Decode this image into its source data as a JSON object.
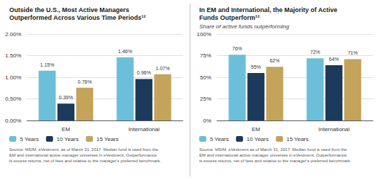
{
  "chart_data": [
    {
      "type": "bar",
      "title": "Outside the U.S., Most Active Managers\nOutperformed Across Various Time Periods¹²",
      "categories": [
        "EM",
        "International"
      ],
      "series": [
        {
          "name": "5 Years",
          "color": "#6bbfd8",
          "values": [
            1.15,
            1.46
          ],
          "value_labels": [
            "1.15%",
            "1.46%"
          ]
        },
        {
          "name": "10 Years",
          "color": "#1b3a5c",
          "values": [
            0.39,
            0.96
          ],
          "value_labels": [
            "0.39%",
            "0.96%"
          ]
        },
        {
          "name": "15 Years",
          "color": "#c4a35a",
          "values": [
            0.76,
            1.07
          ],
          "value_labels": [
            "0.76%",
            "1.07%"
          ]
        }
      ],
      "ylim": [
        0,
        2.0
      ],
      "yticks": [
        {
          "value": 0.0,
          "label": "0.00%"
        },
        {
          "value": 0.5,
          "label": "0.50%"
        },
        {
          "value": 1.0,
          "label": "1.00%"
        },
        {
          "value": 1.5,
          "label": "1.50%"
        },
        {
          "value": 2.0,
          "label": "2.00%"
        }
      ],
      "grid": true,
      "data_labels": true,
      "legend": "lower left",
      "annotations": [
        "Source: MSIM, eVestment, as of March 31, 2017. Median fund is used from the\nEM and international active manager universes in eVestment. Outperformance\nis excess returns, net of fees and relative to the manager's preferred benchmark."
      ]
    },
    {
      "type": "bar",
      "title": "In EM and International, the Majority of Active\nFunds Outperform¹³",
      "subtitle": "Share of active funds outperforming",
      "categories": [
        "EM",
        "International"
      ],
      "series": [
        {
          "name": "5 Years",
          "color": "#6bbfd8",
          "values": [
            76,
            72
          ],
          "value_labels": [
            "76%",
            "72%"
          ]
        },
        {
          "name": "10 Years",
          "color": "#1b3a5c",
          "values": [
            55,
            64
          ],
          "value_labels": [
            "55%",
            "64%"
          ]
        },
        {
          "name": "15 Years",
          "color": "#c4a35a",
          "values": [
            62,
            71
          ],
          "value_labels": [
            "62%",
            "71%"
          ]
        }
      ],
      "ylim": [
        0,
        100
      ],
      "yticks": [
        {
          "value": 0,
          "label": "0%"
        },
        {
          "value": 25,
          "label": "25%"
        },
        {
          "value": 50,
          "label": "50%"
        },
        {
          "value": 75,
          "label": "75%"
        },
        {
          "value": 100,
          "label": "100%"
        }
      ],
      "grid": true,
      "data_labels": true,
      "legend": "lower left",
      "annotations": [
        "Source: MSIM, eVestment as of March 31, 2017. Median fund is used from the\nEM and international active manager universes in eVestment. Outperformance\nis excess returns, net of fees and relative to the manager's preferred benchmark."
      ]
    }
  ]
}
